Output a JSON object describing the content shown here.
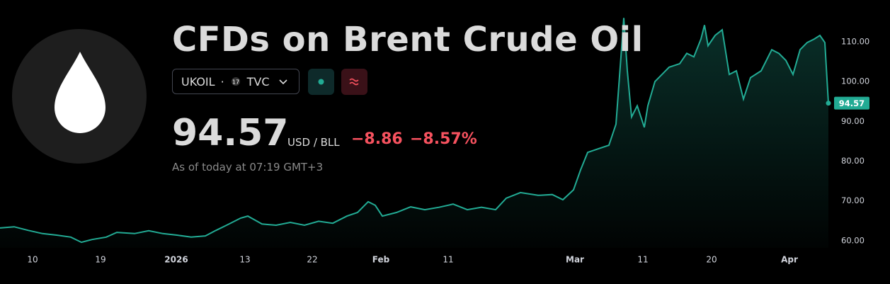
{
  "header": {
    "title": "CFDs on Brent Crude Oil",
    "symbol": "UKOIL",
    "separator": "·",
    "exchange": "TVC",
    "price": "94.57",
    "unit": "USD / BLL",
    "change": "−8.86",
    "change_percent": "−8.57%",
    "as_of": "As of today at 07:19 GMT+3"
  },
  "chart_data": {
    "type": "area",
    "color": "#22ab94",
    "x": [
      0,
      2,
      4,
      6,
      8,
      10,
      11.5,
      13,
      15,
      16.5,
      19,
      21,
      23,
      25,
      27,
      29,
      30.5,
      32,
      34,
      35,
      37,
      39,
      41,
      43,
      45,
      47,
      49,
      50.5,
      52,
      53,
      54,
      56,
      58,
      60,
      62,
      64,
      66,
      68,
      70,
      71.5,
      73.5,
      76,
      78,
      79.5,
      81,
      82,
      83,
      84.5,
      86,
      87,
      87.7,
      88.1,
      88.6,
      89.2,
      90,
      91,
      91.5,
      92.5,
      93.5,
      94.5,
      96,
      97,
      98,
      99,
      99.5,
      100,
      101,
      102,
      103,
      104,
      105,
      106,
      107.5,
      109,
      110,
      111,
      112,
      113,
      114,
      115,
      115.8,
      116.5,
      117
    ],
    "values": [
      63.2,
      63.5,
      62.6,
      61.8,
      61.4,
      60.9,
      59.6,
      60.3,
      60.9,
      62.1,
      61.8,
      62.5,
      61.8,
      61.4,
      60.9,
      61.2,
      62.6,
      63.9,
      65.7,
      66.2,
      64.2,
      63.9,
      64.6,
      63.9,
      64.9,
      64.4,
      66.2,
      67.1,
      69.8,
      68.9,
      66.2,
      67.1,
      68.5,
      67.8,
      68.4,
      69.2,
      67.8,
      68.4,
      67.8,
      70.7,
      72.1,
      71.4,
      71.6,
      70.3,
      72.8,
      77.8,
      82.2,
      83.1,
      84.0,
      89.3,
      106.2,
      116.0,
      102.7,
      91.1,
      93.9,
      88.5,
      93.9,
      100.0,
      101.8,
      103.6,
      104.5,
      107.1,
      106.2,
      110.7,
      114.2,
      109.0,
      111.6,
      113.0,
      101.8,
      102.7,
      95.6,
      101.0,
      102.7,
      108.0,
      107.1,
      105.3,
      101.8,
      108.0,
      109.8,
      110.7,
      111.6,
      109.8,
      94.57
    ],
    "xlim": [
      0,
      117.5
    ],
    "xticks": [
      {
        "value": 4.6,
        "label": "10"
      },
      {
        "value": 14.2,
        "label": "19"
      },
      {
        "value": 24.9,
        "label": "2026"
      },
      {
        "value": 34.6,
        "label": "13"
      },
      {
        "value": 44.1,
        "label": "22"
      },
      {
        "value": 53.8,
        "label": "Feb"
      },
      {
        "value": 63.3,
        "label": "11"
      },
      {
        "value": 81.2,
        "label": "Mar"
      },
      {
        "value": 90.8,
        "label": "11"
      },
      {
        "value": 100.5,
        "label": "20"
      },
      {
        "value": 111.5,
        "label": "Apr"
      }
    ],
    "ylim": [
      58.2,
      120.5
    ],
    "yticks": [
      {
        "value": 60,
        "label": "60.00"
      },
      {
        "value": 70,
        "label": "70.00"
      },
      {
        "value": 80,
        "label": "80.00"
      },
      {
        "value": 90,
        "label": "90.00"
      },
      {
        "value": 100,
        "label": "100.00"
      },
      {
        "value": 110,
        "label": "110.00"
      }
    ]
  }
}
